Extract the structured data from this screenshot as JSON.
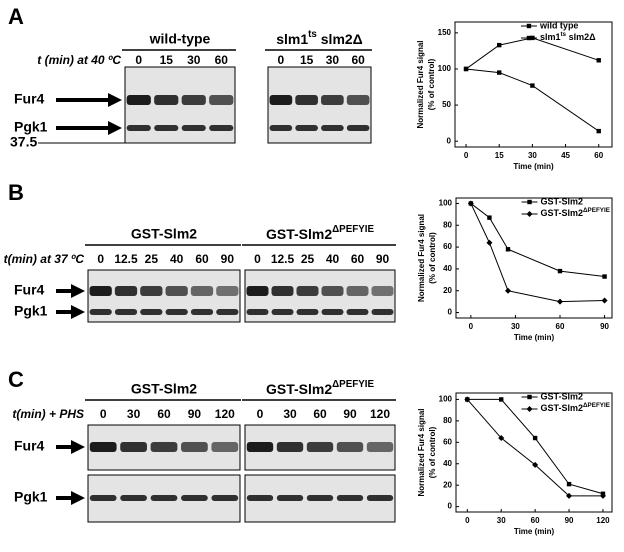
{
  "panels": [
    {
      "label": "A",
      "time_label": "t (min) at 40 ºC",
      "rows": [
        "Fur4",
        "Pgk1"
      ],
      "marker": "37.5",
      "groups": [
        {
          "name": "wild-type",
          "lanes": [
            0,
            15,
            30,
            60
          ]
        },
        {
          "name": [
            "slm1",
            "ts",
            " slm2Δ"
          ],
          "lanes": [
            0,
            15,
            30,
            60
          ]
        }
      ]
    },
    {
      "label": "B",
      "time_label": "t(min) at 37 ºC",
      "rows": [
        "Fur4",
        "Pgk1"
      ],
      "groups": [
        {
          "name": "GST-Slm2",
          "lanes": [
            0,
            12.5,
            25,
            40,
            60,
            90
          ]
        },
        {
          "name": [
            "GST-Slm2",
            "ΔPEFYIE"
          ],
          "lanes": [
            0,
            12.5,
            25,
            40,
            60,
            90
          ]
        }
      ]
    },
    {
      "label": "C",
      "time_label": "t(min) + PHS",
      "rows": [
        "Fur4",
        "Pgk1"
      ],
      "groups": [
        {
          "name": "GST-Slm2",
          "lanes": [
            0,
            30,
            60,
            90,
            120
          ]
        },
        {
          "name": [
            "GST-Slm2",
            "ΔPEFYIE"
          ],
          "lanes": [
            0,
            30,
            60,
            90,
            120
          ]
        }
      ]
    }
  ],
  "chart_data": [
    {
      "type": "line",
      "y_label": [
        "Normalized Fur4 signal",
        "(% of control)"
      ],
      "x_label": "Time (min)",
      "x": [
        0,
        15,
        30,
        60
      ],
      "xlim": [
        -5,
        66
      ],
      "xticks": [
        0,
        15,
        30,
        45,
        60
      ],
      "ylim": [
        -8,
        165
      ],
      "yticks": [
        0,
        50,
        100,
        150
      ],
      "legend": "upper right",
      "series": [
        {
          "name": "wild type",
          "color": "#000000",
          "marker": "square",
          "values": [
            100,
            95,
            77,
            14
          ]
        },
        {
          "name": [
            "slm1",
            "ts",
            " slm2Δ"
          ],
          "color": "#000000",
          "marker": "square",
          "values": [
            100,
            133,
            143,
            112
          ]
        }
      ]
    },
    {
      "type": "line",
      "y_label": [
        "Normalized Fur4 signal",
        "(% of control)"
      ],
      "x_label": "Time (min)",
      "x": [
        0,
        12.5,
        25,
        60,
        90
      ],
      "xlim": [
        -10,
        95
      ],
      "xticks": [
        0,
        30,
        60,
        90
      ],
      "ylim": [
        -5,
        105
      ],
      "yticks": [
        0,
        20,
        40,
        60,
        80,
        100
      ],
      "legend": "upper right",
      "series": [
        {
          "name": "GST-Slm2",
          "color": "#000000",
          "marker": "square",
          "values": [
            100,
            87,
            58,
            38,
            33
          ]
        },
        {
          "name": [
            "GST-Slm2",
            "ΔPEFYIE"
          ],
          "color": "#000000",
          "marker": "diamond",
          "values": [
            100,
            64,
            20,
            10,
            11
          ]
        }
      ]
    },
    {
      "type": "line",
      "y_label": [
        "Normalized Fur4 signal",
        "(% of control)"
      ],
      "x_label": "Time (min)",
      "x": [
        0,
        30,
        60,
        90,
        120
      ],
      "xlim": [
        -10,
        128
      ],
      "xticks": [
        0,
        30,
        60,
        90,
        120
      ],
      "ylim": [
        -5,
        106
      ],
      "yticks": [
        0,
        20,
        40,
        60,
        80,
        100
      ],
      "legend": "upper right",
      "series": [
        {
          "name": "GST-Slm2",
          "color": "#000000",
          "marker": "square",
          "values": [
            100,
            100,
            64,
            21,
            12
          ]
        },
        {
          "name": [
            "GST-Slm2",
            "ΔPEFYIE"
          ],
          "color": "#000000",
          "marker": "diamond",
          "values": [
            100,
            64,
            39,
            10,
            10
          ]
        }
      ]
    }
  ]
}
